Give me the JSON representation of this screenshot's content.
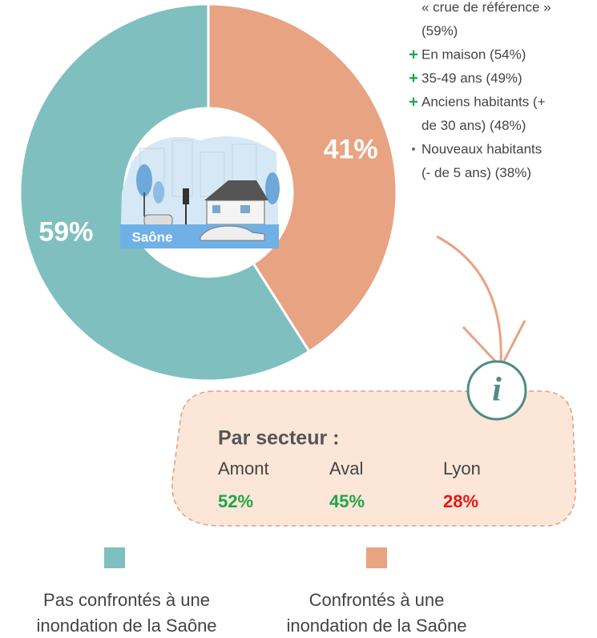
{
  "chart_data": {
    "type": "donut",
    "categories": [
      "Pas confrontés à une inondation de la Saône",
      "Confrontés à une inondation de la Saône"
    ],
    "values": [
      59,
      41
    ],
    "value_labels": [
      "59%",
      "41%"
    ],
    "colors": [
      "#7fbfbf",
      "#e8a382"
    ]
  },
  "image_label": "Saône",
  "notes": [
    {
      "marker": null,
      "lines": [
        "« crue de référence »",
        "(59%)"
      ]
    },
    {
      "marker": "+",
      "lines": [
        "En maison (54%)"
      ]
    },
    {
      "marker": "+",
      "lines": [
        "35-49 ans (49%)"
      ]
    },
    {
      "marker": "+",
      "lines": [
        "Anciens habitants (+",
        "de 30 ans) (48%)"
      ]
    },
    {
      "marker": "•",
      "lines": [
        "Nouveaux habitants",
        "(- de 5 ans) (38%)"
      ]
    }
  ],
  "info": {
    "icon": "i",
    "title": "Par secteur :",
    "items": [
      {
        "name": "Amont",
        "value": "52%",
        "color": "#1ea64a"
      },
      {
        "name": "Aval",
        "value": "45%",
        "color": "#1ea64a"
      },
      {
        "name": "Lyon",
        "value": "28%",
        "color": "#e81515"
      }
    ]
  }
}
